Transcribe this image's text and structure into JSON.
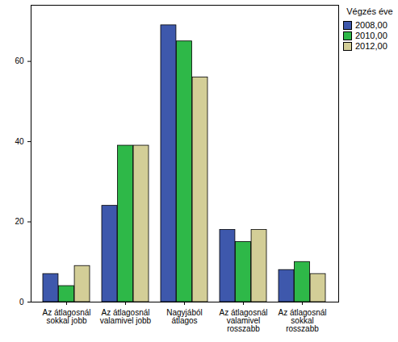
{
  "chart_data": {
    "type": "bar",
    "categories": [
      "Az átlagosnál sokkal jobb",
      "Az átlagosnál valamivel jobb",
      "Nagyjából átlagos",
      "Az átlagosnál valamivel rosszabb",
      "Az átlagosnál sokkal rosszabb"
    ],
    "series": [
      {
        "name": "2008,00",
        "color": "#3e58ac",
        "values": [
          7,
          24,
          69,
          18,
          8
        ]
      },
      {
        "name": "2010,00",
        "color": "#2eb848",
        "values": [
          4,
          39,
          65,
          15,
          10
        ]
      },
      {
        "name": "2012,00",
        "color": "#d3ce97",
        "values": [
          9,
          39,
          56,
          18,
          7
        ]
      }
    ],
    "legend_title": "Végzés éve",
    "legend": "right",
    "ylim": [
      0,
      74
    ],
    "yticks": [
      0,
      20,
      40,
      60
    ],
    "grid": false
  }
}
